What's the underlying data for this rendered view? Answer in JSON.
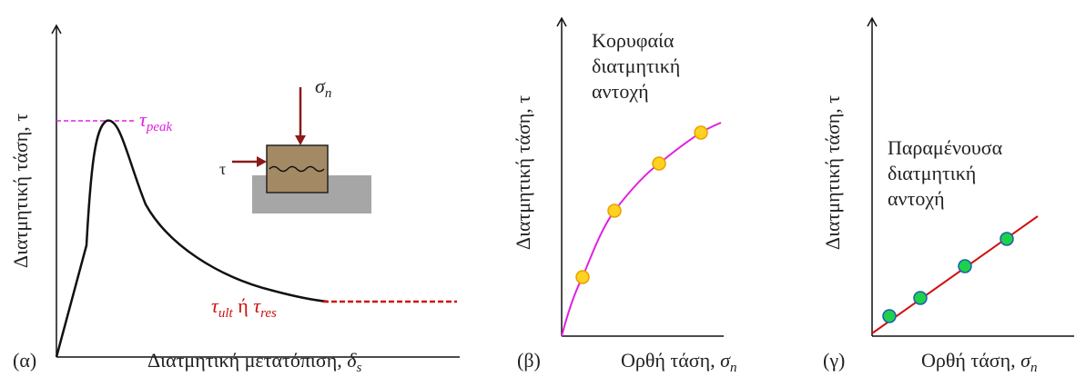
{
  "panel_a": {
    "label": "(α)",
    "y_axis": "Διατμητική τάση, τ",
    "x_axis": {
      "text": "Διατμητική μετατόπιση, ",
      "symbol": "δ",
      "subscript": "s"
    },
    "peak": {
      "symbol": "τ",
      "subscript": "peak"
    },
    "residual": {
      "symbol1": "τ",
      "subscript1": "ult",
      "connector": " ή ",
      "symbol2": "τ",
      "subscript2": "res"
    },
    "normal_force": {
      "symbol": "σ",
      "subscript": "n"
    },
    "shear_force": "τ"
  },
  "panel_b": {
    "label": "(β)",
    "y_axis": "Διατμητική τάση, τ",
    "x_axis": {
      "text": "Ορθή τάση, ",
      "symbol": "σ",
      "subscript": "n"
    },
    "annotation": [
      "Κορυφαία",
      "διατμητική",
      "αντοχή"
    ]
  },
  "panel_c": {
    "label": "(γ)",
    "y_axis": "Διατμητική τάση, τ",
    "x_axis": {
      "text": "Ορθή τάση, ",
      "symbol": "σ",
      "subscript": "n"
    },
    "annotation": [
      "Παραμένουσα",
      "διατμητική",
      "αντοχή"
    ]
  }
}
